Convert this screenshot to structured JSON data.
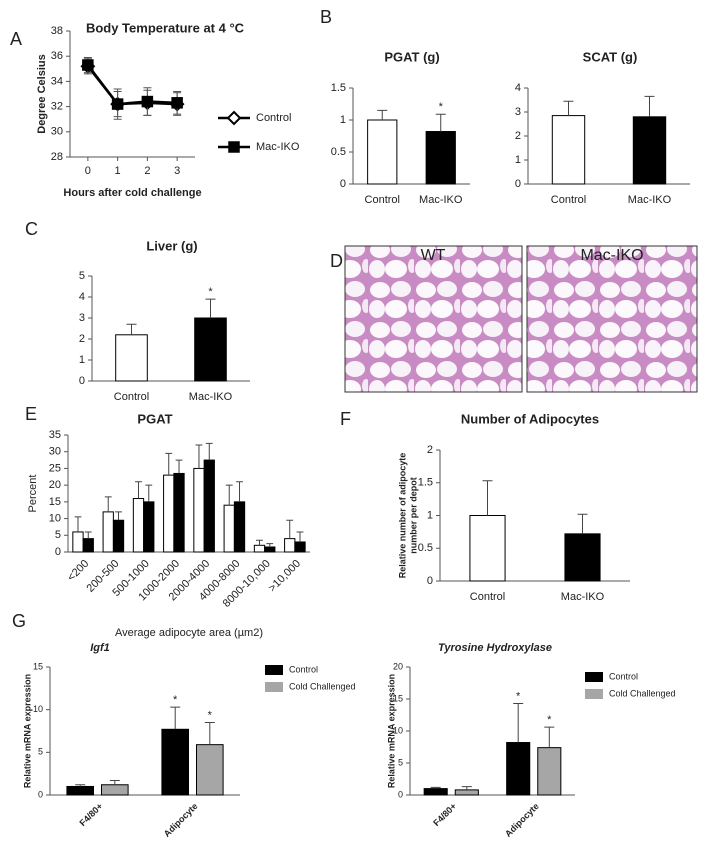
{
  "chart_data": [
    {
      "type": "line",
      "panel": "A",
      "title": "Body Temperature at 4 °C",
      "ylabel": "Degree Celsius",
      "xlabel": "Hours after cold challenge",
      "x": [
        0,
        1,
        2,
        3
      ],
      "xlim": [
        -0.6,
        3.6
      ],
      "xticks": [
        0,
        1,
        2,
        3
      ],
      "ylim": [
        28,
        38
      ],
      "yticks": [
        28,
        30,
        32,
        34,
        36,
        38
      ],
      "series": [
        {
          "name": "Control",
          "color": "#ffffff",
          "marker": "diamond",
          "values": [
            35.2,
            32.2,
            32.3,
            32.2
          ],
          "errors": [
            0.6,
            1.0,
            1.0,
            0.9
          ]
        },
        {
          "name": "Mac-IKO",
          "color": "#000000",
          "marker": "square",
          "values": [
            35.3,
            32.2,
            32.4,
            32.3
          ],
          "errors": [
            0.6,
            1.2,
            1.1,
            0.9
          ]
        }
      ]
    },
    {
      "type": "bar",
      "panel": "B",
      "title": "PGAT (g)",
      "categories": [
        "Control",
        "Mac-IKO"
      ],
      "values": [
        1.0,
        0.82
      ],
      "errors": [
        0.15,
        0.27
      ],
      "colors": [
        "#ffffff",
        "#000000"
      ],
      "ylim": [
        0,
        1.5
      ],
      "yticks": [
        0,
        0.5,
        1,
        1.5
      ],
      "annotations": [
        {
          "text": "*",
          "category": 1
        }
      ]
    },
    {
      "type": "bar",
      "title": "SCAT (g)",
      "categories": [
        "Control",
        "Mac-IKO"
      ],
      "values": [
        2.85,
        2.8
      ],
      "errors": [
        0.6,
        0.85
      ],
      "colors": [
        "#ffffff",
        "#000000"
      ],
      "ylim": [
        0,
        4
      ],
      "yticks": [
        0,
        1,
        2,
        3,
        4
      ]
    },
    {
      "type": "bar",
      "panel": "C",
      "title": "Liver (g)",
      "categories": [
        "Control",
        "Mac-IKO"
      ],
      "values": [
        2.2,
        3.0
      ],
      "errors": [
        0.5,
        0.9
      ],
      "colors": [
        "#ffffff",
        "#000000"
      ],
      "ylim": [
        0,
        5
      ],
      "yticks": [
        0,
        1,
        2,
        3,
        4,
        5
      ],
      "annotations": [
        {
          "text": "*",
          "category": 1
        }
      ]
    },
    {
      "type": "bar",
      "panel": "E",
      "title": "PGAT",
      "ylabel": "Percent",
      "xlabel": "Average adipocyte area (µm2)",
      "categories": [
        "<200",
        "200-500",
        "500-1000",
        "1000-2000",
        "2000-4000",
        "4000-8000",
        "8000-10,000",
        ">10,000"
      ],
      "ylim": [
        0,
        35
      ],
      "yticks": [
        0,
        5,
        10,
        15,
        20,
        25,
        30,
        35
      ],
      "series": [
        {
          "color": "#ffffff",
          "values": [
            6,
            12,
            16,
            23,
            25,
            14,
            2,
            4
          ],
          "errors": [
            4.5,
            4.5,
            5,
            6.5,
            7,
            6,
            1.5,
            5.5
          ]
        },
        {
          "color": "#000000",
          "values": [
            4,
            9.5,
            15,
            23.5,
            27.5,
            15,
            1.5,
            3
          ],
          "errors": [
            2,
            2.5,
            5,
            4,
            5,
            6,
            1,
            3
          ]
        }
      ]
    },
    {
      "type": "bar",
      "panel": "F",
      "title": "Number of Adipocytes",
      "ylabel": [
        "Relative number of adipocyte",
        "number per depot"
      ],
      "categories": [
        "Control",
        "Mac-IKO"
      ],
      "values": [
        1.0,
        0.72
      ],
      "errors": [
        0.53,
        0.3
      ],
      "colors": [
        "#ffffff",
        "#000000"
      ],
      "ylim": [
        0,
        2
      ],
      "yticks": [
        0,
        0.5,
        1,
        1.5,
        2
      ]
    },
    {
      "type": "bar",
      "panel": "G",
      "title": "Igf1",
      "ylabel": "Relative mRNA expression",
      "categories": [
        "F4/80+",
        "Adipocyte"
      ],
      "ylim": [
        0,
        15
      ],
      "yticks": [
        0,
        5,
        10,
        15
      ],
      "series": [
        {
          "name": "Control",
          "color": "#000000",
          "values": [
            1.0,
            7.7
          ],
          "errors": [
            0.2,
            2.6
          ]
        },
        {
          "name": "Cold Challenged",
          "color": "#a6a6a6",
          "values": [
            1.2,
            5.9
          ],
          "errors": [
            0.5,
            2.6
          ]
        }
      ],
      "annotations": [
        {
          "text": "*",
          "series": 0,
          "category": 1
        },
        {
          "text": "*",
          "series": 1,
          "category": 1
        }
      ]
    },
    {
      "type": "bar",
      "title": "Tyrosine Hydroxylase",
      "ylabel": "Relative mRNA expression",
      "categories": [
        "F4/80+",
        "Adipocyte"
      ],
      "ylim": [
        0,
        20
      ],
      "yticks": [
        0,
        5,
        10,
        15,
        20
      ],
      "series": [
        {
          "name": "Control",
          "color": "#000000",
          "values": [
            1.0,
            8.2
          ],
          "errors": [
            0.2,
            6.1
          ]
        },
        {
          "name": "Cold Challenged",
          "color": "#a6a6a6",
          "values": [
            0.8,
            7.4
          ],
          "errors": [
            0.5,
            3.2
          ]
        }
      ],
      "annotations": [
        {
          "text": "*",
          "series": 0,
          "category": 1
        },
        {
          "text": "*",
          "series": 1,
          "category": 1
        }
      ]
    }
  ],
  "micrographs": {
    "panel": "D",
    "labels": [
      "WT",
      "Mac-IKO"
    ]
  }
}
